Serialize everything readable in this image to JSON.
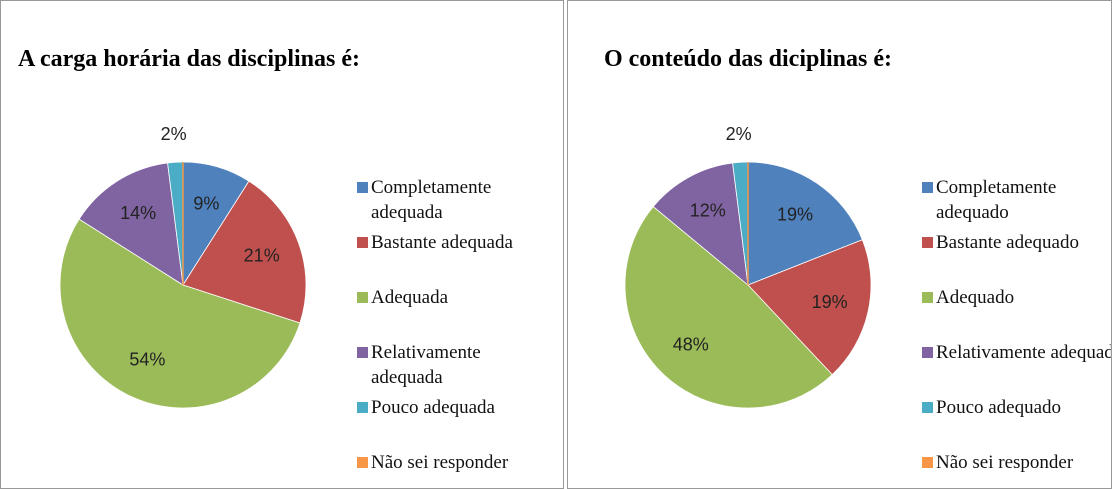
{
  "chart_data": [
    {
      "type": "pie",
      "title": "A carga horária das disciplinas é:",
      "categories": [
        "Completamente adequada",
        "Bastante adequada",
        "Adequada",
        "Relativamente adequada",
        "Pouco adequada",
        "Não sei responder"
      ],
      "values": [
        9,
        21,
        54,
        14,
        2,
        0
      ],
      "value_labels": [
        "9%",
        "21%",
        "54%",
        "14%",
        "2%",
        null
      ],
      "colors": [
        "#4f81bd",
        "#c0504d",
        "#9bbb59",
        "#8064a2",
        "#4bacc6",
        "#f79646"
      ],
      "legend": "right"
    },
    {
      "type": "pie",
      "title": "O conteúdo das diciplinas é:",
      "categories": [
        "Completamente adequado",
        "Bastante adequado",
        "Adequado",
        "Relativamente adequado",
        "Pouco adequado",
        "Não sei responder"
      ],
      "values": [
        19,
        19,
        48,
        12,
        2,
        0
      ],
      "value_labels": [
        "19%",
        "19%",
        "48%",
        "12%",
        "2%",
        null
      ],
      "colors": [
        "#4f81bd",
        "#c0504d",
        "#9bbb59",
        "#8064a2",
        "#4bacc6",
        "#f79646"
      ],
      "legend": "right"
    }
  ]
}
